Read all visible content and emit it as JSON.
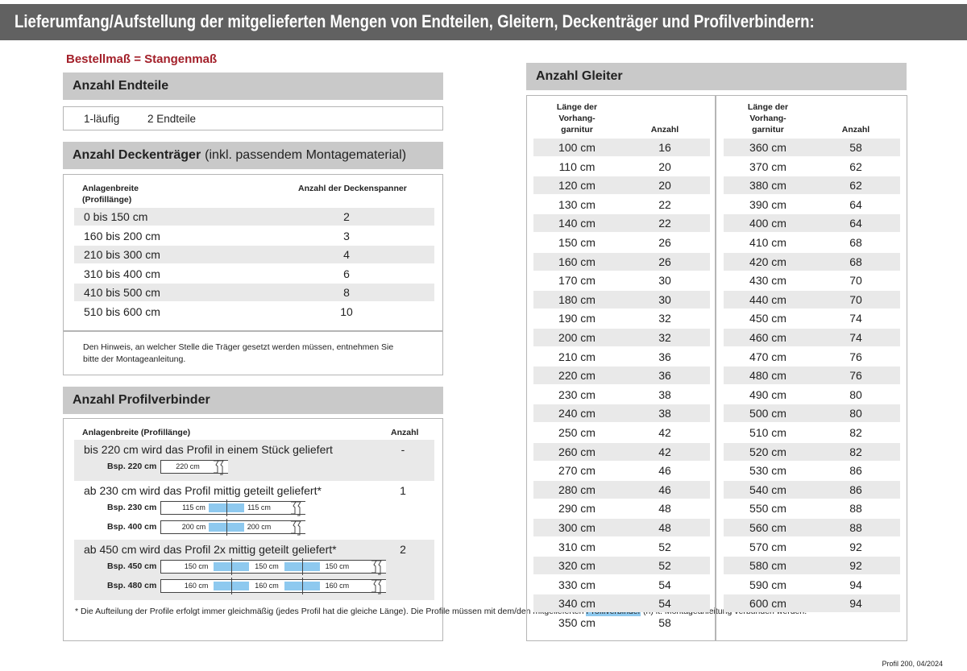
{
  "header": {
    "title": "Lieferumfang/Aufstellung der mitgelieferten Mengen von Endteilen, Gleitern, Deckenträger und Profilverbindern:"
  },
  "order_note": "Bestellmaß = Stangenmaß",
  "endteile": {
    "title": "Anzahl Endteile",
    "rows": [
      [
        "1-läufig",
        "2 Endteile"
      ]
    ]
  },
  "deckentraeger": {
    "title": "Anzahl Deckenträger",
    "title_suffix": "(inkl. passendem Montagematerial)",
    "header_width": [
      "Anlagenbreite",
      "(Profillänge)"
    ],
    "header_count": "Anzahl der Deckenspanner",
    "rows": [
      [
        "0 bis 150 cm",
        2
      ],
      [
        "160 bis 200 cm",
        3
      ],
      [
        "210 bis 300 cm",
        4
      ],
      [
        "310 bis 400 cm",
        6
      ],
      [
        "410 bis 500 cm",
        8
      ],
      [
        "510 bis 600 cm",
        10
      ]
    ],
    "note": "Den Hinweis, an welcher Stelle die Träger gesetzt werden müssen, entnehmen Sie bitte der Montageanleitung."
  },
  "profilverbinder": {
    "title": "Anzahl Profilverbinder",
    "header_width": "Anlagenbreite (Profillänge)",
    "header_count": "Anzahl",
    "groups": [
      {
        "text": "bis 220 cm wird das Profil in einem Stück geliefert",
        "count": "-",
        "examples": [
          {
            "label": "Bsp. 220 cm",
            "segments": [
              "220 cm"
            ]
          }
        ]
      },
      {
        "text": "ab 230 cm wird das Profil mittig geteilt geliefert*",
        "count": 1,
        "examples": [
          {
            "label": "Bsp. 230 cm",
            "segments": [
              "115 cm",
              "115 cm"
            ]
          },
          {
            "label": "Bsp. 400 cm",
            "segments": [
              "200 cm",
              "200 cm"
            ]
          }
        ]
      },
      {
        "text": "ab 450 cm wird das Profil 2x mittig geteilt geliefert*",
        "count": 2,
        "examples": [
          {
            "label": "Bsp. 450 cm",
            "segments": [
              "150 cm",
              "150 cm",
              "150 cm"
            ]
          },
          {
            "label": "Bsp. 480 cm",
            "segments": [
              "160 cm",
              "160 cm",
              "160 cm"
            ]
          }
        ]
      }
    ],
    "footnote": [
      "* Die Aufteilung der Profile erfolgt immer gleichmäßig (jedes Profil hat die gleiche Länge). Die Profile müssen mit dem/den mitgelieferten ",
      "Profilverbinder",
      " (n) lt. Montageanleitung verbunden werden."
    ]
  },
  "gleiter": {
    "title": "Anzahl Gleiter",
    "columns": [
      {
        "header_length": [
          "Länge der",
          "Vorhang-",
          "garnitur"
        ],
        "header_count": "Anzahl",
        "rows": [
          [
            "100 cm",
            16
          ],
          [
            "110 cm",
            20
          ],
          [
            "120 cm",
            20
          ],
          [
            "130 cm",
            22
          ],
          [
            "140 cm",
            22
          ],
          [
            "150 cm",
            26
          ],
          [
            "160 cm",
            26
          ],
          [
            "170 cm",
            30
          ],
          [
            "180 cm",
            30
          ],
          [
            "190 cm",
            32
          ],
          [
            "200 cm",
            32
          ],
          [
            "210 cm",
            36
          ],
          [
            "220 cm",
            36
          ],
          [
            "230 cm",
            38
          ],
          [
            "240 cm",
            38
          ],
          [
            "250 cm",
            42
          ],
          [
            "260 cm",
            42
          ],
          [
            "270 cm",
            46
          ],
          [
            "280 cm",
            46
          ],
          [
            "290 cm",
            48
          ],
          [
            "300 cm",
            48
          ],
          [
            "310 cm",
            52
          ],
          [
            "320 cm",
            52
          ],
          [
            "330 cm",
            54
          ],
          [
            "340 cm",
            54
          ],
          [
            "350 cm",
            58
          ]
        ]
      },
      {
        "header_length": [
          "Länge der",
          "Vorhang-",
          "garnitur"
        ],
        "header_count": "Anzahl",
        "rows": [
          [
            "360 cm",
            58
          ],
          [
            "370 cm",
            62
          ],
          [
            "380 cm",
            62
          ],
          [
            "390 cm",
            64
          ],
          [
            "400 cm",
            64
          ],
          [
            "410 cm",
            68
          ],
          [
            "420 cm",
            68
          ],
          [
            "430 cm",
            70
          ],
          [
            "440 cm",
            70
          ],
          [
            "450 cm",
            74
          ],
          [
            "460 cm",
            74
          ],
          [
            "470 cm",
            76
          ],
          [
            "480 cm",
            76
          ],
          [
            "490 cm",
            80
          ],
          [
            "500 cm",
            80
          ],
          [
            "510 cm",
            82
          ],
          [
            "520 cm",
            82
          ],
          [
            "530 cm",
            86
          ],
          [
            "540 cm",
            86
          ],
          [
            "550 cm",
            88
          ],
          [
            "560 cm",
            88
          ],
          [
            "570 cm",
            92
          ],
          [
            "580 cm",
            92
          ],
          [
            "590 cm",
            94
          ],
          [
            "600 cm",
            94
          ]
        ]
      }
    ]
  },
  "footer": "Profil 200, 04/2024"
}
